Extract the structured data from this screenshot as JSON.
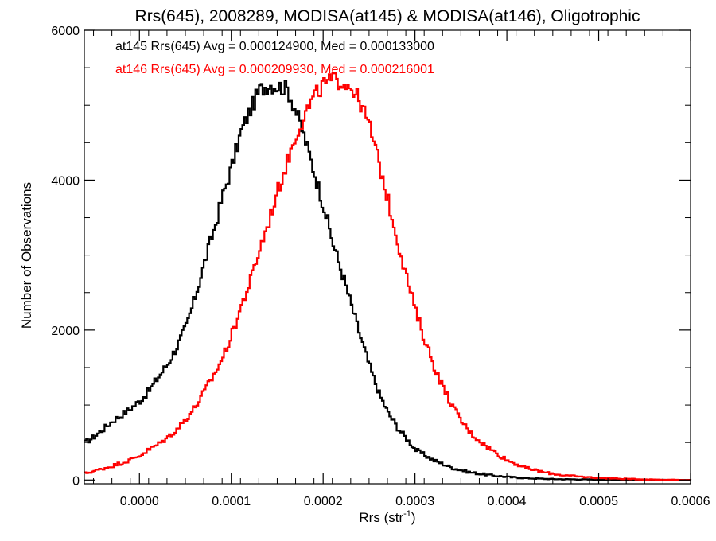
{
  "chart_data": {
    "type": "line",
    "title": "Rrs(645), 2008289, MODISA(at145) & MODISA(at146), Oligotrophic",
    "xlabel": "Rrs (str⁻¹)",
    "xlabel_main": "Rrs (str",
    "xlabel_sup": "-1",
    "xlabel_close": ")",
    "ylabel": "Number of Observations",
    "xlim": [
      -6e-05,
      0.0006
    ],
    "ylim": [
      -50,
      6000
    ],
    "xticks": [
      0.0,
      0.0001,
      0.0002,
      0.0003,
      0.0004,
      0.0005,
      0.0006
    ],
    "xtick_labels": [
      "0.0000",
      "0.0001",
      "0.0002",
      "0.0003",
      "0.0004",
      "0.0005",
      "0.0006"
    ],
    "yticks": [
      0,
      2000,
      4000,
      6000
    ],
    "ytick_labels": [
      "0",
      "2000",
      "4000",
      "6000"
    ],
    "grid": false,
    "annotations": [
      {
        "text": "at145 Rrs(645) Avg = 0.000124900, Med = 0.000133000",
        "color": "#000000"
      },
      {
        "text": "at146 Rrs(645) Avg = 0.000209930, Med = 0.000216001",
        "color": "#ff0000"
      }
    ],
    "series": [
      {
        "color": "#000000",
        "x": [
          -6e-05,
          -5e-05,
          -4e-05,
          -3e-05,
          -2e-05,
          -1e-05,
          0.0,
          1e-05,
          2e-05,
          3e-05,
          4e-05,
          5e-05,
          6e-05,
          7e-05,
          8e-05,
          9e-05,
          0.0001,
          0.00011,
          0.00012,
          0.00013,
          0.00014,
          0.00015,
          0.00016,
          0.00017,
          0.00018,
          0.00019,
          0.0002,
          0.00021,
          0.00022,
          0.00023,
          0.00024,
          0.00025,
          0.00026,
          0.00027,
          0.00028,
          0.00029,
          0.0003,
          0.00032,
          0.00034,
          0.00036,
          0.00038,
          0.0004,
          0.00042,
          0.00044,
          0.00046,
          0.00048,
          0.0005,
          0.00055,
          0.0006
        ],
        "y": [
          500,
          580,
          680,
          790,
          870,
          960,
          1060,
          1200,
          1380,
          1550,
          1780,
          2050,
          2450,
          2900,
          3330,
          3800,
          4200,
          4650,
          4950,
          5200,
          5280,
          5250,
          5220,
          4900,
          4520,
          4080,
          3640,
          3150,
          2750,
          2320,
          1900,
          1500,
          1150,
          890,
          700,
          550,
          400,
          260,
          160,
          100,
          65,
          40,
          25,
          15,
          10,
          8,
          5,
          2,
          0
        ]
      },
      {
        "color": "#ff0000",
        "x": [
          -6e-05,
          -5e-05,
          -4e-05,
          -3e-05,
          -2e-05,
          -1e-05,
          0.0,
          1e-05,
          2e-05,
          3e-05,
          4e-05,
          5e-05,
          6e-05,
          7e-05,
          8e-05,
          9e-05,
          0.0001,
          0.00011,
          0.00012,
          0.00013,
          0.00014,
          0.00015,
          0.00016,
          0.00017,
          0.00018,
          0.00019,
          0.0002,
          0.00021,
          0.00022,
          0.00023,
          0.00024,
          0.00025,
          0.00026,
          0.00027,
          0.00028,
          0.00029,
          0.0003,
          0.00031,
          0.00032,
          0.00033,
          0.00034,
          0.00035,
          0.00036,
          0.00037,
          0.00038,
          0.00039,
          0.0004,
          0.00042,
          0.00044,
          0.00046,
          0.00048,
          0.0005,
          0.00052,
          0.00055,
          0.00058,
          0.0006
        ],
        "y": [
          90,
          120,
          155,
          190,
          230,
          270,
          330,
          410,
          480,
          570,
          680,
          820,
          980,
          1180,
          1400,
          1640,
          1950,
          2320,
          2660,
          3080,
          3450,
          3870,
          4250,
          4620,
          4900,
          5120,
          5280,
          5330,
          5320,
          5240,
          5020,
          4700,
          4220,
          3710,
          3200,
          2700,
          2240,
          1860,
          1520,
          1220,
          980,
          780,
          620,
          520,
          420,
          340,
          260,
          160,
          100,
          65,
          42,
          28,
          18,
          8,
          3,
          0
        ]
      }
    ]
  }
}
